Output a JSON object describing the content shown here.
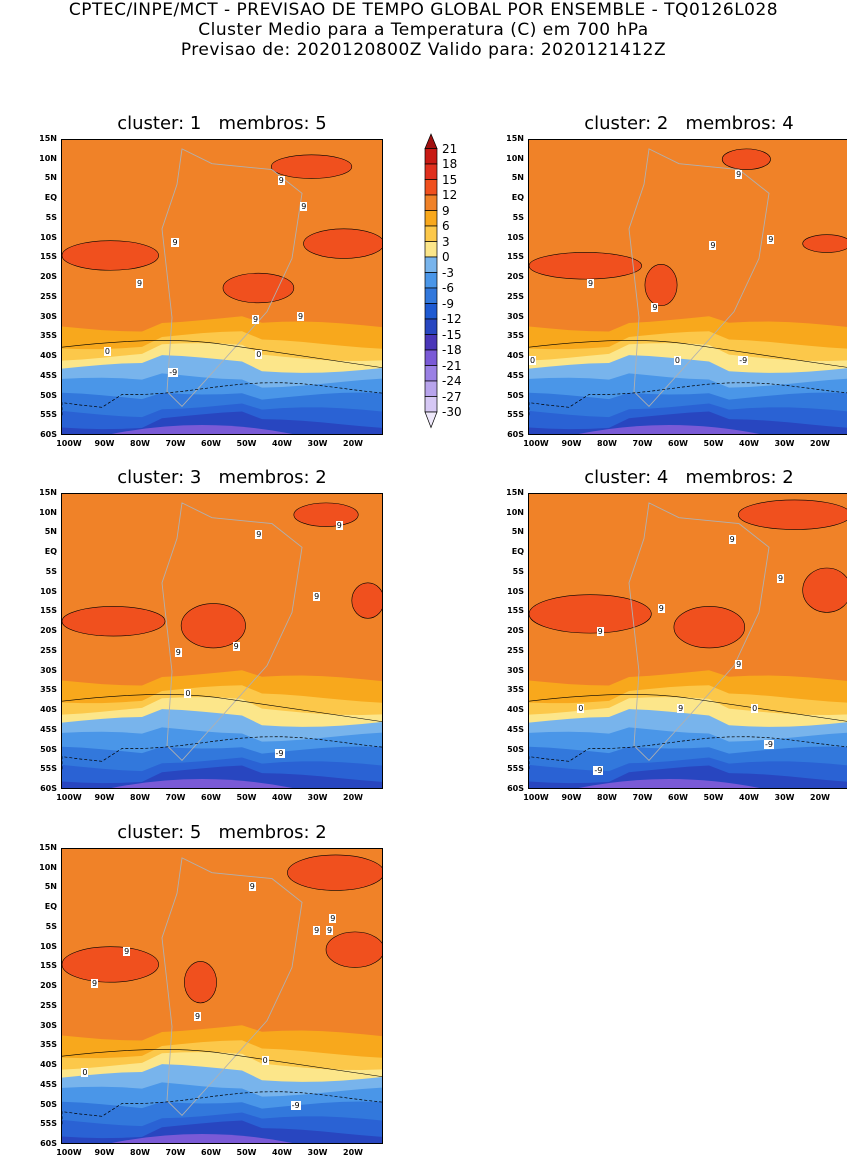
{
  "header": {
    "line1": "CPTEC/INPE/MCT - PREVISAO DE TEMPO GLOBAL POR ENSEMBLE - TQ0126L028",
    "line2": "Cluster Medio para a Temperatura (C) em 700 hPa",
    "line3": "Previsao de: 2020120800Z    Valido para: 2020121412Z"
  },
  "lat_labels": [
    "15N",
    "10N",
    "5N",
    "EQ",
    "5S",
    "10S",
    "15S",
    "20S",
    "25S",
    "30S",
    "35S",
    "40S",
    "45S",
    "50S",
    "55S",
    "60S"
  ],
  "lon_labels": [
    "100W",
    "90W",
    "80W",
    "70W",
    "60W",
    "50W",
    "40W",
    "30W",
    "20W"
  ],
  "colorbar": {
    "ticks": [
      "21",
      "18",
      "15",
      "12",
      "9",
      "6",
      "3",
      "0",
      "-3",
      "-6",
      "-9",
      "-12",
      "-15",
      "-18",
      "-21",
      "-24",
      "-27",
      "-30"
    ],
    "colors": [
      "#a01010",
      "#c81a14",
      "#e0301e",
      "#f0501e",
      "#f08228",
      "#f8a81c",
      "#fcc84a",
      "#fce68a",
      "#78b4ec",
      "#4a96e8",
      "#3278dc",
      "#1e5ad2",
      "#2846c0",
      "#4a36b8",
      "#7a5ad6",
      "#9a80e4",
      "#b8a4ec",
      "#d6c8f4"
    ]
  },
  "panels": [
    {
      "title": "cluster: 1   membros: 5",
      "labels": [
        "9",
        "9",
        "9",
        "9",
        "9",
        "9",
        "0",
        "0",
        "-9"
      ]
    },
    {
      "title": "cluster: 2   membros: 4",
      "labels": [
        "9",
        "9",
        "9",
        "9",
        "9",
        "0",
        "0",
        "-9"
      ]
    },
    {
      "title": "cluster: 3   membros: 2",
      "labels": [
        "9",
        "9",
        "9",
        "9",
        "9",
        "0",
        "-9"
      ]
    },
    {
      "title": "cluster: 4   membros: 2",
      "labels": [
        "9",
        "9",
        "9",
        "9",
        "9",
        "9",
        "0",
        "0",
        "-9",
        "-9"
      ]
    },
    {
      "title": "cluster: 5   membros: 2",
      "labels": [
        "9",
        "9",
        "9",
        "9",
        "9",
        "9",
        "9",
        "0",
        "0",
        "-9"
      ]
    }
  ]
}
